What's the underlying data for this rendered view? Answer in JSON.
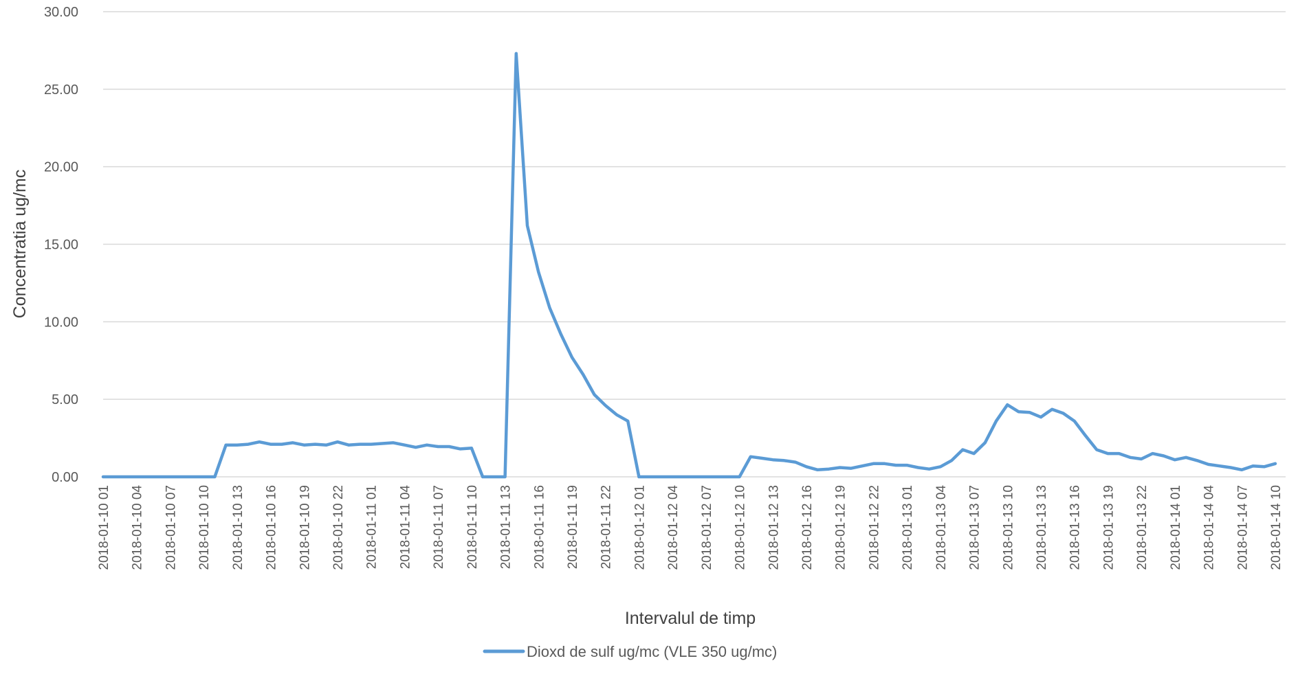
{
  "chart_data": {
    "type": "line",
    "title": "",
    "xlabel": "Intervalul de timp",
    "ylabel": "Concentratia ug/mc",
    "ylim": [
      0,
      30
    ],
    "yticks": [
      "0.00",
      "5.00",
      "10.00",
      "15.00",
      "20.00",
      "25.00",
      "30.00"
    ],
    "grid": "horizontal",
    "legend_position": "bottom",
    "x_tick_labels": [
      "2018-01-10 01",
      "2018-01-10 04",
      "2018-01-10 07",
      "2018-01-10 10",
      "2018-01-10 13",
      "2018-01-10 16",
      "2018-01-10 19",
      "2018-01-10 22",
      "2018-01-11 01",
      "2018-01-11 04",
      "2018-01-11 07",
      "2018-01-11 10",
      "2018-01-11 13",
      "2018-01-11 16",
      "2018-01-11 19",
      "2018-01-11 22",
      "2018-01-12 01",
      "2018-01-12 04",
      "2018-01-12 07",
      "2018-01-12 10",
      "2018-01-12 13",
      "2018-01-12 16",
      "2018-01-12 19",
      "2018-01-12 22",
      "2018-01-13 01",
      "2018-01-13 04",
      "2018-01-13 07",
      "2018-01-13 10",
      "2018-01-13 13",
      "2018-01-13 16",
      "2018-01-13 19",
      "2018-01-13 22",
      "2018-01-14 01",
      "2018-01-14 04",
      "2018-01-14 07",
      "2018-01-14 10"
    ],
    "series": [
      {
        "name": "Dioxd de sulf ug/mc (VLE 350 ug/mc)",
        "color": "#5b9bd5",
        "x_start": "2018-01-10 01",
        "x_step_hours": 1,
        "values": [
          0.0,
          0.0,
          0.0,
          0.0,
          0.0,
          0.0,
          0.0,
          0.0,
          0.0,
          0.0,
          0.0,
          2.05,
          2.05,
          2.1,
          2.25,
          2.1,
          2.1,
          2.2,
          2.05,
          2.1,
          2.05,
          2.25,
          2.05,
          2.1,
          2.1,
          2.15,
          2.2,
          2.05,
          1.9,
          2.05,
          1.95,
          1.95,
          1.8,
          1.85,
          0.0,
          0.0,
          0.0,
          27.3,
          16.2,
          13.2,
          10.9,
          9.2,
          7.7,
          6.6,
          5.3,
          4.6,
          4.0,
          3.6,
          0.0,
          0.0,
          0.0,
          0.0,
          0.0,
          0.0,
          0.0,
          0.0,
          0.0,
          0.0,
          1.3,
          1.2,
          1.1,
          1.05,
          0.95,
          0.65,
          0.45,
          0.5,
          0.6,
          0.55,
          0.7,
          0.85,
          0.85,
          0.75,
          0.75,
          0.6,
          0.5,
          0.65,
          1.05,
          1.75,
          1.5,
          2.2,
          3.6,
          4.65,
          4.2,
          4.15,
          3.85,
          4.35,
          4.1,
          3.6,
          2.65,
          1.75,
          1.5,
          1.5,
          1.25,
          1.15,
          1.5,
          1.35,
          1.1,
          1.25,
          1.05,
          0.8,
          0.7,
          0.6,
          0.45,
          0.7,
          0.65,
          0.85
        ]
      }
    ]
  }
}
